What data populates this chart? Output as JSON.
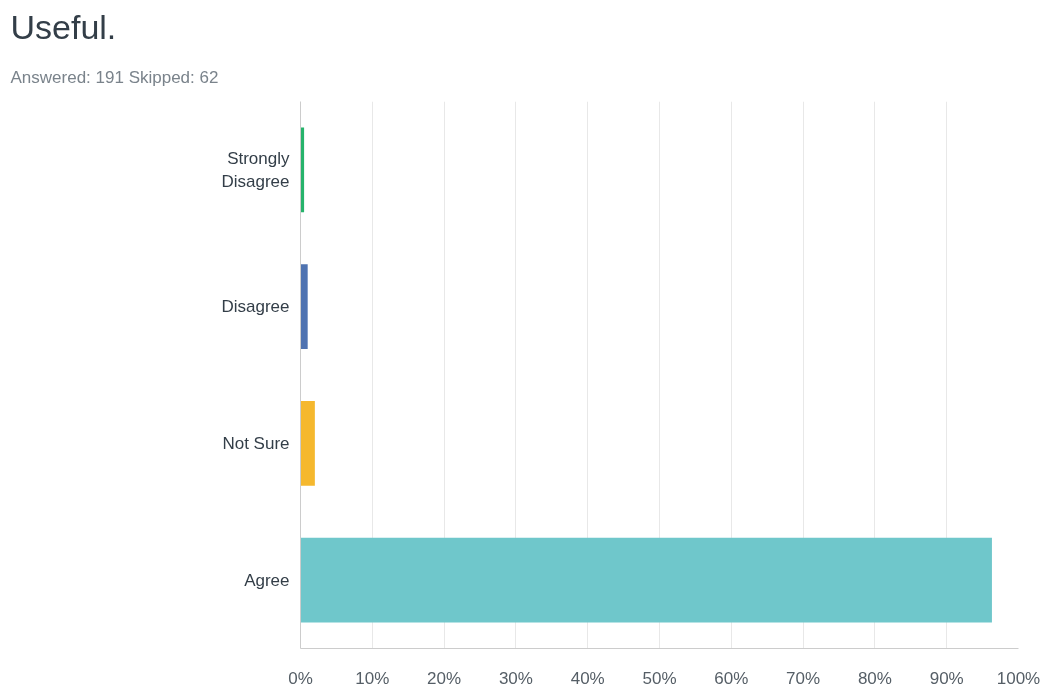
{
  "chart_data": {
    "type": "bar",
    "orientation": "horizontal",
    "title": "Useful.",
    "subtitle": "Answered: 191    Skipped: 62",
    "categories": [
      "Strongly Disagree",
      "Disagree",
      "Not Sure",
      "Agree"
    ],
    "values": [
      0.5,
      1.0,
      2.0,
      96.3
    ],
    "colors": [
      "#26b36b",
      "#4f73b1",
      "#f5b82e",
      "#6fc7cb"
    ],
    "xlim": [
      0,
      100
    ],
    "xticks": [
      {
        "value": 0,
        "label": "0%"
      },
      {
        "value": 10,
        "label": "10%"
      },
      {
        "value": 20,
        "label": "20%"
      },
      {
        "value": 30,
        "label": "30%"
      },
      {
        "value": 40,
        "label": "40%"
      },
      {
        "value": 50,
        "label": "50%"
      },
      {
        "value": 60,
        "label": "60%"
      },
      {
        "value": 70,
        "label": "70%"
      },
      {
        "value": 80,
        "label": "80%"
      },
      {
        "value": 90,
        "label": "90%"
      },
      {
        "value": 100,
        "label": "100%"
      }
    ],
    "grid": "x"
  }
}
